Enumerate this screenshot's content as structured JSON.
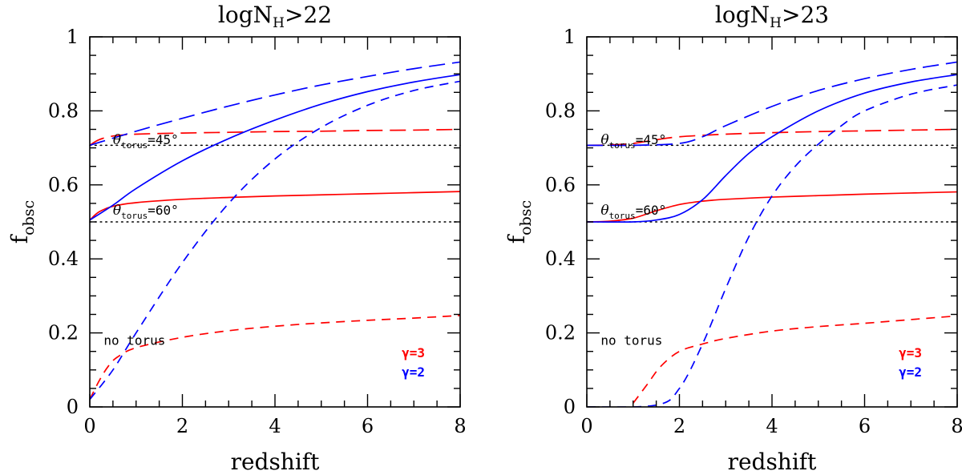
{
  "chart_data": [
    {
      "type": "line",
      "title": "logN_H>22",
      "title_main": "logN",
      "title_sub": "H",
      "title_rest": ">22",
      "xlabel": "redshift",
      "ylabel_main": "f",
      "ylabel_sub": "obsc",
      "xlim": [
        0,
        8
      ],
      "ylim": [
        0,
        1
      ],
      "xticks": [
        0,
        2,
        4,
        6,
        8
      ],
      "yticks": [
        0,
        0.2,
        0.4,
        0.6,
        0.8,
        1
      ],
      "ytick_labels": [
        "0",
        "0.2",
        "0.4",
        "0.6",
        "0.8",
        "1"
      ],
      "reference_lines": [
        0.707,
        0.5
      ],
      "annotations": [
        {
          "theta": "θ",
          "sub": "torus",
          "rest": "=45°",
          "x": 0.5,
          "y": 0.71
        },
        {
          "theta": "θ",
          "sub": "torus",
          "rest": "=60°",
          "x": 0.5,
          "y": 0.52
        },
        {
          "text": "no torus",
          "x": 0.3,
          "y": 0.168
        }
      ],
      "legend": [
        {
          "label": "γ=3",
          "color": "#ff0000"
        },
        {
          "label": "γ=2",
          "color": "#0000ff"
        }
      ],
      "series": [
        {
          "name": "γ=3 θtorus=45°",
          "color": "#ff0000",
          "dash": "long",
          "x": [
            0,
            0.2,
            0.5,
            1,
            2,
            3,
            4,
            5,
            6,
            7,
            8
          ],
          "y": [
            0.707,
            0.722,
            0.732,
            0.737,
            0.74,
            0.742,
            0.744,
            0.745,
            0.747,
            0.748,
            0.75
          ]
        },
        {
          "name": "γ=3 θtorus=60°",
          "color": "#ff0000",
          "dash": "solid",
          "x": [
            0,
            0.2,
            0.5,
            1,
            2,
            3,
            4,
            5,
            6,
            7,
            8
          ],
          "y": [
            0.505,
            0.527,
            0.542,
            0.552,
            0.561,
            0.566,
            0.57,
            0.573,
            0.576,
            0.579,
            0.582
          ]
        },
        {
          "name": "γ=3 no torus",
          "color": "#ff0000",
          "dash": "short",
          "x": [
            0,
            0.2,
            0.4,
            0.6,
            1,
            2,
            3,
            4,
            5,
            6,
            7,
            8
          ],
          "y": [
            0.02,
            0.07,
            0.11,
            0.135,
            0.16,
            0.188,
            0.206,
            0.218,
            0.227,
            0.234,
            0.24,
            0.247
          ]
        },
        {
          "name": "γ=2 θtorus=45°",
          "color": "#0000ff",
          "dash": "long",
          "x": [
            0,
            1,
            2,
            3,
            4,
            5,
            6,
            7,
            8
          ],
          "y": [
            0.707,
            0.745,
            0.78,
            0.813,
            0.843,
            0.87,
            0.893,
            0.914,
            0.932
          ]
        },
        {
          "name": "γ=2 θtorus=60°",
          "color": "#0000ff",
          "dash": "solid",
          "x": [
            0,
            0.5,
            1,
            2,
            3,
            4,
            5,
            6,
            7,
            8
          ],
          "y": [
            0.505,
            0.545,
            0.59,
            0.665,
            0.725,
            0.775,
            0.818,
            0.852,
            0.878,
            0.898
          ]
        },
        {
          "name": "γ=2 no torus",
          "color": "#0000ff",
          "dash": "short",
          "x": [
            0,
            0.5,
            1,
            2,
            3,
            4,
            5,
            6,
            7,
            8
          ],
          "y": [
            0.02,
            0.1,
            0.2,
            0.39,
            0.55,
            0.67,
            0.755,
            0.815,
            0.855,
            0.88
          ]
        }
      ]
    },
    {
      "type": "line",
      "title": "logN_H>23",
      "title_main": "logN",
      "title_sub": "H",
      "title_rest": ">23",
      "xlabel": "redshift",
      "ylabel_main": "f",
      "ylabel_sub": "obsc",
      "xlim": [
        0,
        8
      ],
      "ylim": [
        0,
        1
      ],
      "xticks": [
        0,
        2,
        4,
        6,
        8
      ],
      "yticks": [
        0,
        0.2,
        0.4,
        0.6,
        0.8,
        1
      ],
      "ytick_labels": [
        "0",
        "0.2",
        "0.4",
        "0.6",
        "0.8",
        "1"
      ],
      "reference_lines": [
        0.707,
        0.5
      ],
      "annotations": [
        {
          "theta": "θ",
          "sub": "torus",
          "rest": "=45°",
          "x": 0.3,
          "y": 0.71
        },
        {
          "theta": "θ",
          "sub": "torus",
          "rest": "=60°",
          "x": 0.3,
          "y": 0.52
        },
        {
          "text": "no torus",
          "x": 0.3,
          "y": 0.168
        }
      ],
      "legend": [
        {
          "label": "γ=3",
          "color": "#ff0000"
        },
        {
          "label": "γ=2",
          "color": "#0000ff"
        }
      ],
      "series": [
        {
          "name": "γ=3 θtorus=45°",
          "color": "#ff0000",
          "dash": "long",
          "x": [
            0,
            0.5,
            1,
            1.5,
            2,
            3,
            4,
            5,
            6,
            7,
            8
          ],
          "y": [
            0.707,
            0.708,
            0.712,
            0.722,
            0.73,
            0.737,
            0.741,
            0.744,
            0.746,
            0.748,
            0.75
          ]
        },
        {
          "name": "γ=3 θtorus=60°",
          "color": "#ff0000",
          "dash": "solid",
          "x": [
            0,
            0.5,
            1,
            1.5,
            2,
            2.5,
            3,
            4,
            5,
            6,
            7,
            8
          ],
          "y": [
            0.5,
            0.502,
            0.51,
            0.53,
            0.547,
            0.556,
            0.561,
            0.567,
            0.571,
            0.575,
            0.578,
            0.581
          ]
        },
        {
          "name": "γ=3 no torus",
          "color": "#ff0000",
          "dash": "short",
          "x": [
            1,
            1.3,
            1.6,
            2,
            2.5,
            3,
            4,
            5,
            6,
            7,
            8
          ],
          "y": [
            0.01,
            0.06,
            0.11,
            0.15,
            0.17,
            0.185,
            0.205,
            0.217,
            0.226,
            0.236,
            0.246
          ]
        },
        {
          "name": "γ=2 θtorus=45°",
          "color": "#0000ff",
          "dash": "long",
          "x": [
            0,
            1,
            2,
            2.5,
            3,
            4,
            5,
            6,
            7,
            8
          ],
          "y": [
            0.707,
            0.707,
            0.712,
            0.73,
            0.76,
            0.812,
            0.855,
            0.887,
            0.912,
            0.932
          ]
        },
        {
          "name": "γ=2 θtorus=60°",
          "color": "#0000ff",
          "dash": "solid",
          "x": [
            0,
            1,
            1.5,
            2,
            2.5,
            3,
            3.5,
            4,
            5,
            6,
            7,
            8
          ],
          "y": [
            0.5,
            0.5,
            0.505,
            0.52,
            0.56,
            0.625,
            0.685,
            0.73,
            0.8,
            0.848,
            0.878,
            0.898
          ]
        },
        {
          "name": "γ=2 no torus",
          "color": "#0000ff",
          "dash": "short",
          "x": [
            0,
            1.5,
            2,
            2.5,
            3,
            3.5,
            4,
            4.5,
            5,
            5.5,
            6,
            7,
            8
          ],
          "y": [
            0,
            0.005,
            0.05,
            0.17,
            0.32,
            0.46,
            0.57,
            0.65,
            0.71,
            0.76,
            0.8,
            0.845,
            0.87
          ]
        }
      ]
    }
  ]
}
